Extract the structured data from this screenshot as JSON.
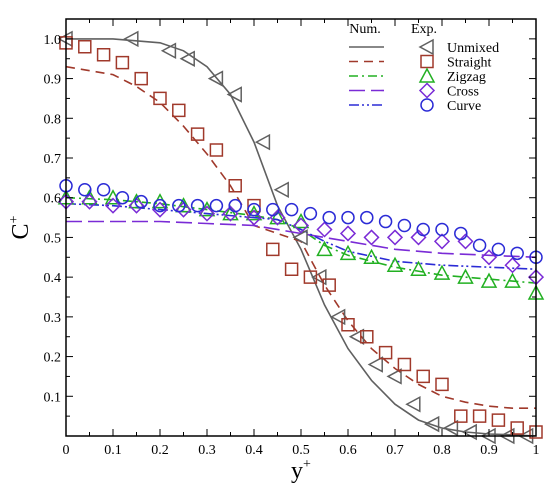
{
  "chart_data": {
    "type": "scatter",
    "xlabel": "y",
    "xlabel_sup": "+",
    "ylabel": "C",
    "ylabel_sup": "+",
    "xlim": [
      0,
      1
    ],
    "ylim": [
      0,
      1.05
    ],
    "x_ticks": [
      0,
      0.1,
      0.2,
      0.3,
      0.4,
      0.5,
      0.6,
      0.7,
      0.8,
      0.9,
      1
    ],
    "x_tick_labels": [
      "0",
      "0.1",
      "0.2",
      "0.3",
      "0.4",
      "0.5",
      "0.6",
      "0.7",
      "0.8",
      "0.9",
      "1"
    ],
    "y_ticks": [
      0.1,
      0.2,
      0.3,
      0.4,
      0.5,
      0.6,
      0.7,
      0.8,
      0.9,
      1.0
    ],
    "y_tick_labels": [
      "0.1",
      "0.2",
      "0.3",
      "0.4",
      "0.5",
      "0.6",
      "0.7",
      "0.8",
      "0.9",
      "1.0"
    ],
    "grid": false,
    "legend_position": "top-right",
    "legend_headers": {
      "num": "Num.",
      "exp": "Exp."
    },
    "series": [
      {
        "name": "Unmixed",
        "color": "#606060",
        "line_style": "solid",
        "marker": "triangle-left",
        "num_x": [
          0,
          0.1,
          0.2,
          0.25,
          0.3,
          0.35,
          0.4,
          0.45,
          0.5,
          0.55,
          0.6,
          0.65,
          0.7,
          0.75,
          0.8,
          0.85,
          0.9,
          0.95,
          1.0
        ],
        "num_y": [
          1.0,
          1.0,
          0.99,
          0.97,
          0.93,
          0.86,
          0.74,
          0.58,
          0.47,
          0.33,
          0.22,
          0.14,
          0.08,
          0.04,
          0.02,
          0.01,
          0.005,
          0.003,
          0.0
        ],
        "exp_x": [
          0.0,
          0.14,
          0.22,
          0.26,
          0.32,
          0.36,
          0.42,
          0.46,
          0.5,
          0.54,
          0.58,
          0.62,
          0.66,
          0.7,
          0.74,
          0.78,
          0.82,
          0.86,
          0.9,
          0.94,
          0.98
        ],
        "exp_y": [
          1.0,
          1.0,
          0.97,
          0.95,
          0.9,
          0.86,
          0.74,
          0.62,
          0.5,
          0.4,
          0.3,
          0.25,
          0.18,
          0.15,
          0.08,
          0.03,
          0.02,
          0.01,
          0.0,
          0.0,
          0.0
        ]
      },
      {
        "name": "Straight",
        "color": "#a0392b",
        "line_style": "dashed",
        "marker": "square",
        "num_x": [
          0,
          0.1,
          0.15,
          0.2,
          0.25,
          0.3,
          0.35,
          0.4,
          0.45,
          0.5,
          0.55,
          0.6,
          0.65,
          0.7,
          0.75,
          0.8,
          0.85,
          0.9,
          0.95,
          1.0
        ],
        "num_y": [
          0.93,
          0.91,
          0.88,
          0.84,
          0.78,
          0.71,
          0.63,
          0.53,
          0.51,
          0.49,
          0.38,
          0.29,
          0.22,
          0.17,
          0.13,
          0.1,
          0.085,
          0.075,
          0.07,
          0.07
        ],
        "exp_x": [
          0.0,
          0.04,
          0.08,
          0.12,
          0.16,
          0.2,
          0.24,
          0.28,
          0.32,
          0.36,
          0.4,
          0.44,
          0.48,
          0.52,
          0.56,
          0.6,
          0.64,
          0.68,
          0.72,
          0.76,
          0.8,
          0.84,
          0.88,
          0.92,
          0.96,
          1.0
        ],
        "exp_y": [
          0.99,
          0.98,
          0.96,
          0.94,
          0.9,
          0.85,
          0.82,
          0.76,
          0.72,
          0.63,
          0.58,
          0.47,
          0.42,
          0.4,
          0.38,
          0.28,
          0.25,
          0.21,
          0.18,
          0.15,
          0.13,
          0.05,
          0.05,
          0.04,
          0.02,
          0.01
        ]
      },
      {
        "name": "Zigzag",
        "color": "#22b022",
        "line_style": "dashdot",
        "marker": "triangle-up",
        "num_x": [
          0,
          0.1,
          0.2,
          0.3,
          0.4,
          0.45,
          0.5,
          0.55,
          0.6,
          0.7,
          0.8,
          0.9,
          1.0
        ],
        "num_y": [
          0.6,
          0.595,
          0.585,
          0.57,
          0.555,
          0.545,
          0.52,
          0.48,
          0.455,
          0.425,
          0.405,
          0.395,
          0.385
        ],
        "exp_x": [
          0.0,
          0.05,
          0.1,
          0.15,
          0.2,
          0.25,
          0.3,
          0.35,
          0.4,
          0.45,
          0.5,
          0.55,
          0.6,
          0.65,
          0.7,
          0.75,
          0.8,
          0.85,
          0.9,
          0.95,
          1.0
        ],
        "exp_y": [
          0.6,
          0.6,
          0.6,
          0.59,
          0.59,
          0.58,
          0.57,
          0.56,
          0.56,
          0.55,
          0.54,
          0.47,
          0.46,
          0.45,
          0.43,
          0.42,
          0.41,
          0.4,
          0.39,
          0.39,
          0.36
        ]
      },
      {
        "name": "Cross",
        "color": "#7a2bd6",
        "line_style": "longdash",
        "marker": "diamond",
        "num_x": [
          0,
          0.1,
          0.2,
          0.3,
          0.4,
          0.5,
          0.6,
          0.7,
          0.8,
          0.9,
          1.0
        ],
        "num_y": [
          0.54,
          0.54,
          0.54,
          0.535,
          0.53,
          0.51,
          0.49,
          0.47,
          0.46,
          0.455,
          0.45
        ],
        "exp_x": [
          0.0,
          0.05,
          0.1,
          0.15,
          0.2,
          0.25,
          0.3,
          0.35,
          0.4,
          0.45,
          0.5,
          0.55,
          0.6,
          0.65,
          0.7,
          0.75,
          0.8,
          0.85,
          0.9,
          0.95,
          1.0
        ],
        "exp_y": [
          0.59,
          0.59,
          0.58,
          0.58,
          0.57,
          0.57,
          0.56,
          0.56,
          0.55,
          0.55,
          0.53,
          0.52,
          0.51,
          0.5,
          0.5,
          0.5,
          0.49,
          0.49,
          0.45,
          0.43,
          0.4
        ]
      },
      {
        "name": "Curve",
        "color": "#2b2bd6",
        "line_style": "dashdotdot",
        "marker": "circle",
        "num_x": [
          0,
          0.1,
          0.2,
          0.3,
          0.4,
          0.45,
          0.5,
          0.55,
          0.6,
          0.7,
          0.8,
          0.9,
          1.0
        ],
        "num_y": [
          0.585,
          0.58,
          0.57,
          0.56,
          0.55,
          0.545,
          0.52,
          0.49,
          0.465,
          0.44,
          0.43,
          0.425,
          0.42
        ],
        "exp_x": [
          0.0,
          0.04,
          0.08,
          0.12,
          0.16,
          0.2,
          0.24,
          0.28,
          0.32,
          0.36,
          0.4,
          0.44,
          0.48,
          0.52,
          0.56,
          0.6,
          0.64,
          0.68,
          0.72,
          0.76,
          0.8,
          0.84,
          0.88,
          0.92,
          0.96,
          1.0
        ],
        "exp_y": [
          0.63,
          0.62,
          0.62,
          0.6,
          0.59,
          0.58,
          0.58,
          0.58,
          0.58,
          0.58,
          0.57,
          0.57,
          0.57,
          0.56,
          0.55,
          0.55,
          0.55,
          0.54,
          0.53,
          0.52,
          0.52,
          0.51,
          0.48,
          0.47,
          0.46,
          0.45
        ]
      }
    ]
  }
}
